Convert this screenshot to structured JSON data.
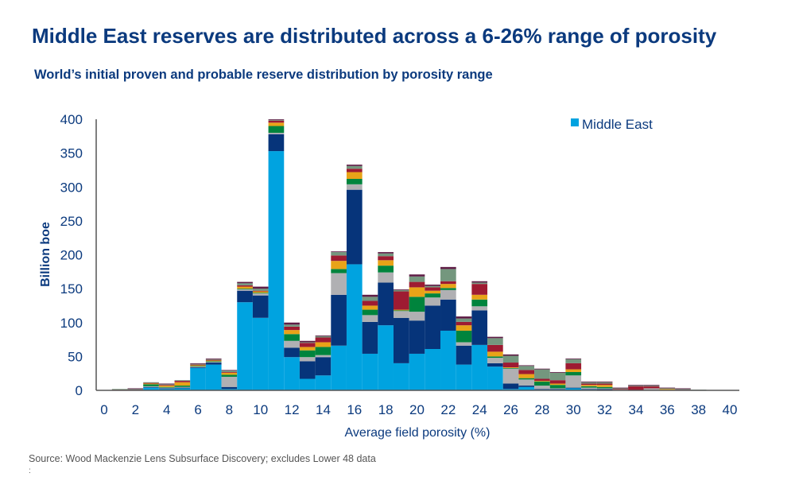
{
  "title": "Middle East reserves are distributed across a 6-26% range of porosity",
  "subtitle": "World’s initial proven and probable reserve distribution by porosity range",
  "source": "Source: Wood Mackenzie Lens Subsurface Discovery; excludes Lower 48 data",
  "footnote": ":",
  "chart_data": {
    "type": "bar",
    "stacked": true,
    "xlabel": "Average field porosity (%)",
    "ylabel": "Billion boe",
    "xlim": [
      0,
      40
    ],
    "ylim": [
      0,
      400
    ],
    "xticks": [
      "0",
      "2",
      "4",
      "6",
      "8",
      "10",
      "12",
      "14",
      "16",
      "18",
      "20",
      "22",
      "24",
      "26",
      "28",
      "30",
      "32",
      "34",
      "36",
      "38",
      "40"
    ],
    "yticks": [
      "0",
      "50",
      "100",
      "150",
      "200",
      "250",
      "300",
      "350",
      "400"
    ],
    "legend": {
      "position": "top-right",
      "entries": [
        "Middle East"
      ]
    },
    "grid": false,
    "x": [
      1,
      2,
      3,
      4,
      5,
      6,
      7,
      8,
      9,
      10,
      11,
      12,
      13,
      14,
      15,
      16,
      17,
      18,
      19,
      20,
      21,
      22,
      23,
      24,
      25,
      26,
      27,
      28,
      29,
      30,
      31,
      32,
      33,
      34,
      35,
      36,
      37,
      38,
      39
    ],
    "series": [
      {
        "name": "Middle East",
        "color": "#00a3e0",
        "values": [
          0,
          0,
          4,
          2,
          3,
          33,
          38,
          2,
          130,
          107,
          353,
          49,
          17,
          22,
          66,
          186,
          54,
          96,
          40,
          54,
          61,
          88,
          38,
          67,
          35,
          2,
          5,
          1,
          1,
          3,
          1,
          0,
          0,
          0,
          0,
          0,
          0,
          0,
          0
        ]
      },
      {
        "color": "#06347a",
        "values": [
          0,
          0,
          1,
          1,
          1,
          1,
          3,
          3,
          17,
          33,
          25,
          14,
          26,
          27,
          75,
          110,
          47,
          63,
          67,
          49,
          64,
          46,
          28,
          51,
          5,
          8,
          2,
          1,
          1,
          1,
          1,
          2,
          0,
          0,
          0,
          0,
          0,
          0,
          0
        ]
      },
      {
        "color": "#b0b0b3",
        "values": [
          0,
          0,
          1,
          1,
          1,
          1,
          1,
          15,
          2,
          3,
          2,
          10,
          6,
          3,
          32,
          8,
          10,
          15,
          10,
          13,
          12,
          14,
          5,
          6,
          8,
          22,
          9,
          5,
          1,
          18,
          2,
          1,
          1,
          0,
          3,
          0,
          0,
          0,
          0
        ]
      },
      {
        "color": "#00843d",
        "values": [
          0,
          0,
          3,
          1,
          2,
          1,
          1,
          3,
          1,
          1,
          10,
          10,
          10,
          12,
          6,
          8,
          8,
          10,
          1,
          22,
          6,
          3,
          17,
          10,
          2,
          1,
          2,
          6,
          5,
          5,
          2,
          2,
          0,
          0,
          0,
          0,
          0,
          0,
          0
        ]
      },
      {
        "color": "#e8a318",
        "values": [
          0,
          0,
          1,
          2,
          5,
          1,
          1,
          3,
          3,
          2,
          5,
          6,
          5,
          7,
          12,
          10,
          6,
          8,
          1,
          14,
          4,
          6,
          8,
          7,
          7,
          1,
          6,
          1,
          2,
          4,
          2,
          3,
          0,
          0,
          0,
          2,
          0,
          0,
          0
        ]
      },
      {
        "color": "#9e1b32",
        "values": [
          1,
          1,
          1,
          1,
          2,
          1,
          1,
          1,
          2,
          1,
          3,
          5,
          6,
          7,
          8,
          5,
          7,
          6,
          27,
          8,
          5,
          4,
          5,
          16,
          10,
          7,
          6,
          3,
          5,
          9,
          2,
          2,
          1,
          6,
          3,
          0,
          1,
          0,
          0
        ]
      },
      {
        "color": "#74977e",
        "values": [
          1,
          1,
          1,
          1,
          1,
          1,
          1,
          2,
          3,
          3,
          1,
          3,
          1,
          2,
          5,
          4,
          6,
          4,
          2,
          8,
          2,
          18,
          5,
          2,
          10,
          10,
          6,
          14,
          11,
          6,
          2,
          2,
          1,
          1,
          1,
          1,
          1,
          1,
          0.5
        ]
      },
      {
        "color": "#5e1c45",
        "values": [
          0,
          1,
          0,
          1,
          0,
          1,
          1,
          1,
          2,
          3,
          1,
          3,
          2,
          1,
          1,
          2,
          3,
          2,
          1,
          3,
          2,
          3,
          3,
          2,
          2,
          2,
          1,
          1,
          1,
          1,
          1,
          1,
          1,
          1,
          1,
          1,
          1,
          0,
          0
        ]
      }
    ]
  }
}
